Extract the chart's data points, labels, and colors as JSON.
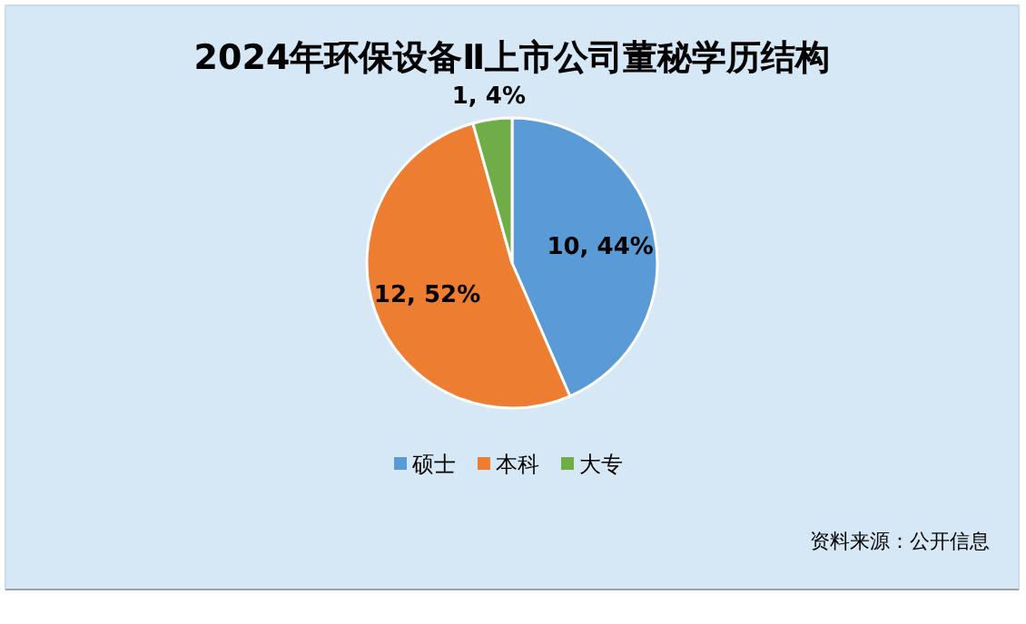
{
  "chart_data": {
    "type": "pie",
    "title": "2024年环保设备Ⅱ上市公司董秘学历结构",
    "categories": [
      "硕士",
      "本科",
      "大专"
    ],
    "values": [
      10,
      12,
      1
    ],
    "colors": [
      "#5b9bd5",
      "#ed7d31",
      "#70ad47"
    ],
    "value_labels": [
      "10, 44%",
      "12, 52%",
      "1, 4%"
    ],
    "legend": "bottom",
    "annotations": [
      "资料来源：公开信息"
    ]
  }
}
